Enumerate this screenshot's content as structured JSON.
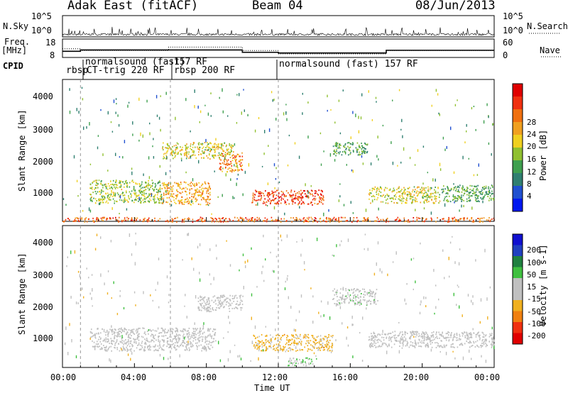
{
  "header": {
    "radar": "Adak East (fitACF)",
    "beam": "Beam 04",
    "date": "08/Jun/2013"
  },
  "colors": {
    "power_scale": [
      "#0018f0",
      "#2050d0",
      "#2f7f70",
      "#3f9f4f",
      "#90c030",
      "#f0d020",
      "#f0a020",
      "#f07010",
      "#f03010",
      "#e00000"
    ],
    "velocity_scale": [
      "#1010d0",
      "#2040c0",
      "#208040",
      "#40c040",
      "#c0c0c0",
      "#c0c0c0",
      "#f0b020",
      "#f08010",
      "#f03010",
      "#e00000"
    ]
  },
  "chart_data": [
    {
      "type": "line",
      "panel": "noise",
      "left_label": "N.Sky",
      "right_label": "N.Search",
      "y_ticks_left": [
        "10^5",
        "10^0"
      ],
      "y_ticks_right": [
        "10^5",
        "10^0"
      ]
    },
    {
      "type": "line",
      "panel": "frequency",
      "left_label_top": "Freq.",
      "left_label_bottom": "[MHz]",
      "right_label": "Nave",
      "y_ticks_left": [
        "18",
        "8"
      ],
      "y_ticks_right": [
        "60",
        "0"
      ],
      "series": [
        {
          "name": "Freq.",
          "x": [
            0,
            1,
            10,
            12,
            18,
            24
          ],
          "values": [
            11.2,
            12.0,
            10.6,
            10.2,
            11.8,
            11.8
          ]
        },
        {
          "name": "Nave",
          "x": [
            0,
            1,
            5.9,
            10,
            12,
            18,
            24
          ],
          "values": [
            28,
            22,
            34,
            22,
            10,
            22,
            22
          ]
        }
      ]
    },
    {
      "type": "table",
      "panel": "cpid",
      "label": "CPID",
      "modes": [
        {
          "start": 0,
          "text": "rbsp"
        },
        {
          "start": 1,
          "text": "normalsound (fast)"
        },
        {
          "start": 1,
          "text": "CT-trig 220 RF"
        },
        {
          "start": 6,
          "text": "157 RF"
        },
        {
          "start": 6,
          "text": "rbsp 200 RF"
        },
        {
          "start": 12,
          "text": "normalsound (fast) 157 RF"
        }
      ]
    },
    {
      "type": "heatmap",
      "panel": "power",
      "title": "Beam 04",
      "xlabel": "Time UT",
      "ylabel": "Slant Range [km]",
      "colorbar_label": "Power [dB]",
      "colorbar_ticks": [
        "28",
        "24",
        "20",
        "16",
        "12",
        "8",
        "4"
      ],
      "x_ticks": [
        "00:00",
        "04:00",
        "08:00",
        "12:00",
        "16:00",
        "20:00",
        "00:00"
      ],
      "y_ticks": [
        "1000",
        "2000",
        "3000",
        "4000"
      ],
      "xlim": [
        0,
        24
      ],
      "ylim": [
        180,
        4500
      ],
      "regions": [
        {
          "t0": 1.5,
          "t1": 5.5,
          "r0": 750,
          "r1": 1450,
          "level": 14
        },
        {
          "t0": 5.5,
          "t1": 8.2,
          "r0": 700,
          "r1": 1400,
          "level": 20
        },
        {
          "t0": 8.7,
          "t1": 10.0,
          "r0": 1700,
          "r1": 2300,
          "level": 22
        },
        {
          "t0": 10.5,
          "t1": 14.5,
          "r0": 700,
          "r1": 1150,
          "level": 26
        },
        {
          "t0": 17.0,
          "t1": 21.0,
          "r0": 750,
          "r1": 1250,
          "level": 16
        },
        {
          "t0": 21.0,
          "t1": 24.0,
          "r0": 800,
          "r1": 1300,
          "level": 10
        },
        {
          "t0": 15.0,
          "t1": 17.0,
          "r0": 2200,
          "r1": 2600,
          "level": 10
        },
        {
          "t0": 5.5,
          "t1": 9.5,
          "r0": 2100,
          "r1": 2600,
          "level": 16
        },
        {
          "t0": 0.0,
          "t1": 24.0,
          "r0": 180,
          "r1": 320,
          "level": 24
        }
      ]
    },
    {
      "type": "heatmap",
      "panel": "velocity",
      "xlabel": "Time UT",
      "ylabel": "Slant Range [km]",
      "colorbar_label": "Velocity [m s-1]",
      "colorbar_ticks": [
        "200",
        "100",
        "50",
        "15",
        "-15",
        "-50",
        "-100",
        "-200"
      ],
      "x_ticks": [
        "00:00",
        "04:00",
        "08:00",
        "12:00",
        "16:00",
        "20:00",
        "00:00"
      ],
      "y_ticks": [
        "1000",
        "2000",
        "3000",
        "4000"
      ],
      "xlim": [
        0,
        24
      ],
      "ylim": [
        180,
        4500
      ],
      "regions": [
        {
          "t0": 1.5,
          "t1": 8.5,
          "r0": 700,
          "r1": 1400,
          "velocity": 0
        },
        {
          "t0": 7.5,
          "t1": 10.0,
          "r0": 1900,
          "r1": 2400,
          "velocity": 0
        },
        {
          "t0": 10.5,
          "t1": 15.0,
          "r0": 700,
          "r1": 1200,
          "velocity": -60
        },
        {
          "t0": 12.5,
          "t1": 14.0,
          "r0": 250,
          "r1": 500,
          "velocity": 40
        },
        {
          "t0": 17.0,
          "t1": 24.0,
          "r0": 800,
          "r1": 1300,
          "velocity": 0
        },
        {
          "t0": 15.0,
          "t1": 17.5,
          "r0": 2100,
          "r1": 2600,
          "velocity": 20
        }
      ]
    }
  ]
}
